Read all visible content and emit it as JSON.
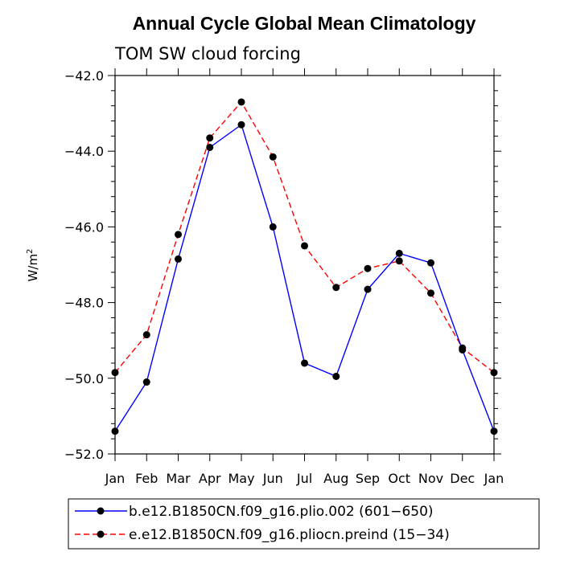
{
  "chart_data": {
    "type": "line",
    "title": "Annual Cycle Global Mean Climatology",
    "subtitle": "TOM SW cloud forcing",
    "ylabel": "W/m",
    "ylabel_sup": "2",
    "xlabel": "",
    "categories": [
      "Jan",
      "Feb",
      "Mar",
      "Apr",
      "May",
      "Jun",
      "Jul",
      "Aug",
      "Sep",
      "Oct",
      "Nov",
      "Dec",
      "Jan"
    ],
    "ylim": [
      -52.0,
      -42.0
    ],
    "yticks": [
      -52.0,
      -50.0,
      -48.0,
      -46.0,
      -44.0,
      -42.0
    ],
    "ytick_labels": [
      "−52.0",
      "−50.0",
      "−48.0",
      "−46.0",
      "−44.0",
      "−42.0"
    ],
    "grid": false,
    "legend_position": "bottom",
    "series": [
      {
        "name": "b.e12.B1850CN.f09_g16.plio.002 (601−650)",
        "color": "#0000ff",
        "dash": "solid",
        "marker": "filled-circle",
        "values": [
          -51.4,
          -50.1,
          -46.85,
          -43.9,
          -43.3,
          -46.0,
          -49.6,
          -49.95,
          -47.65,
          -46.7,
          -46.95,
          -49.25,
          -51.4
        ]
      },
      {
        "name": "e.e12.B1850CN.f09_g16.pliocn.preind (15−34)",
        "color": "#ff0000",
        "dash": "dashed",
        "marker": "filled-circle",
        "values": [
          -49.85,
          -48.85,
          -46.2,
          -43.65,
          -42.7,
          -44.15,
          -46.5,
          -47.6,
          -47.1,
          -46.9,
          -47.75,
          -49.2,
          -49.85
        ]
      }
    ]
  }
}
